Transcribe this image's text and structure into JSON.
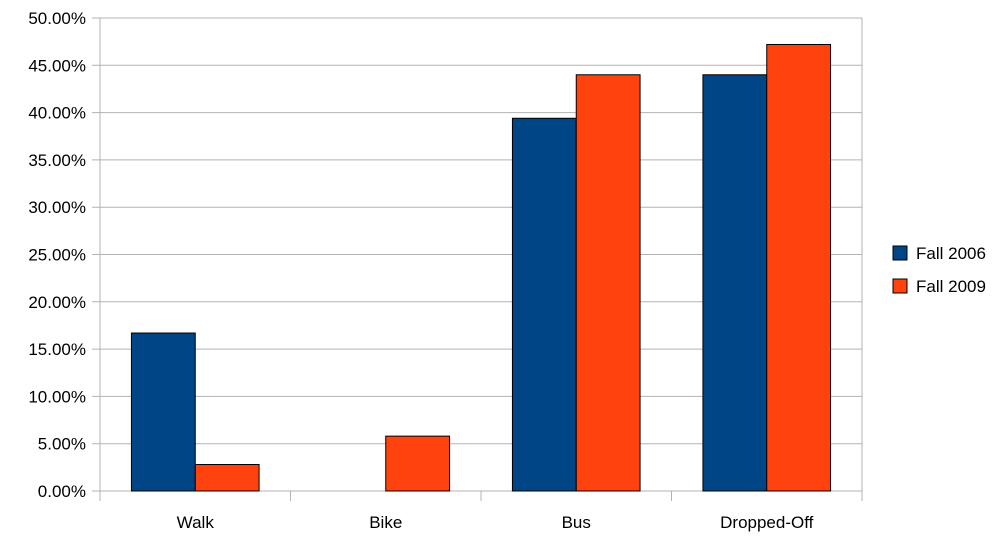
{
  "chart_data": {
    "type": "bar",
    "title": "",
    "xlabel": "",
    "ylabel": "",
    "categories": [
      "Walk",
      "Bike",
      "Bus",
      "Dropped-Off"
    ],
    "series": [
      {
        "name": "Fall 2006",
        "color": "#004586",
        "values": [
          16.7,
          0.0,
          39.4,
          44.0
        ]
      },
      {
        "name": "Fall 2009",
        "color": "#FF420E",
        "values": [
          2.8,
          5.8,
          44.0,
          47.2
        ]
      }
    ],
    "ylim": [
      0,
      50
    ],
    "yticks": [
      "0.00%",
      "5.00%",
      "10.00%",
      "15.00%",
      "20.00%",
      "25.00%",
      "30.00%",
      "35.00%",
      "40.00%",
      "45.00%",
      "50.00%"
    ],
    "grid": true,
    "legend_position": "right"
  }
}
